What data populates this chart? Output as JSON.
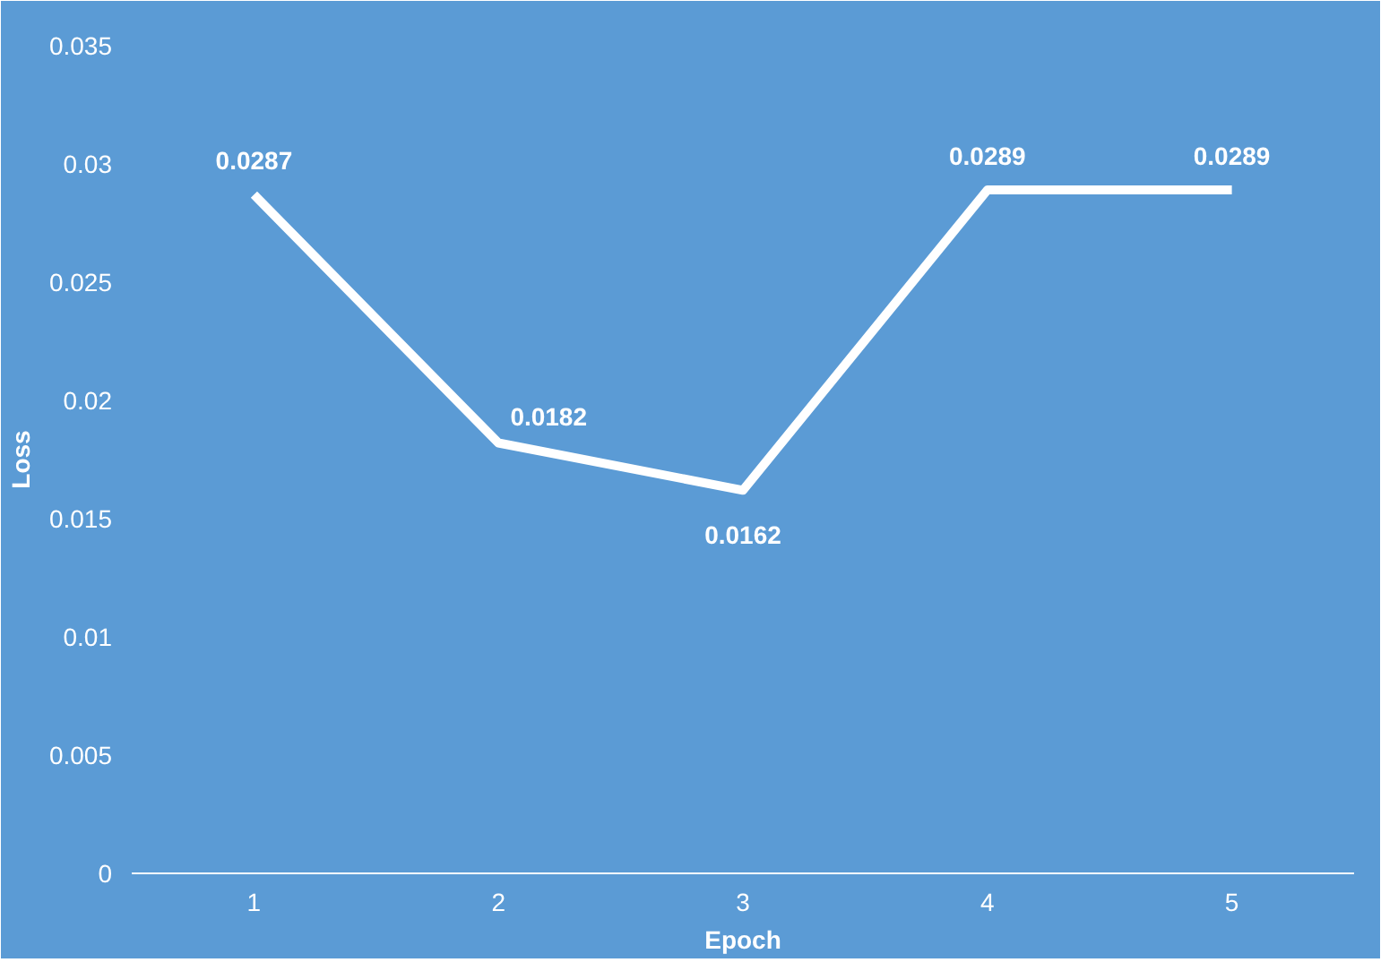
{
  "chart_data": {
    "type": "line",
    "xlabel": "Epoch",
    "ylabel": "Loss",
    "categories": [
      "1",
      "2",
      "3",
      "4",
      "5"
    ],
    "series": [
      {
        "color": "#ffffff",
        "values": [
          0.0287,
          0.0182,
          0.0162,
          0.0289,
          0.0289
        ]
      }
    ],
    "ylim": [
      0,
      0.035
    ],
    "yticks": [
      0,
      0.005,
      0.01,
      0.015,
      0.02,
      0.025,
      0.03,
      0.035
    ],
    "grid": false,
    "marker": "none",
    "line_style": "solid",
    "data_labels": true
  }
}
